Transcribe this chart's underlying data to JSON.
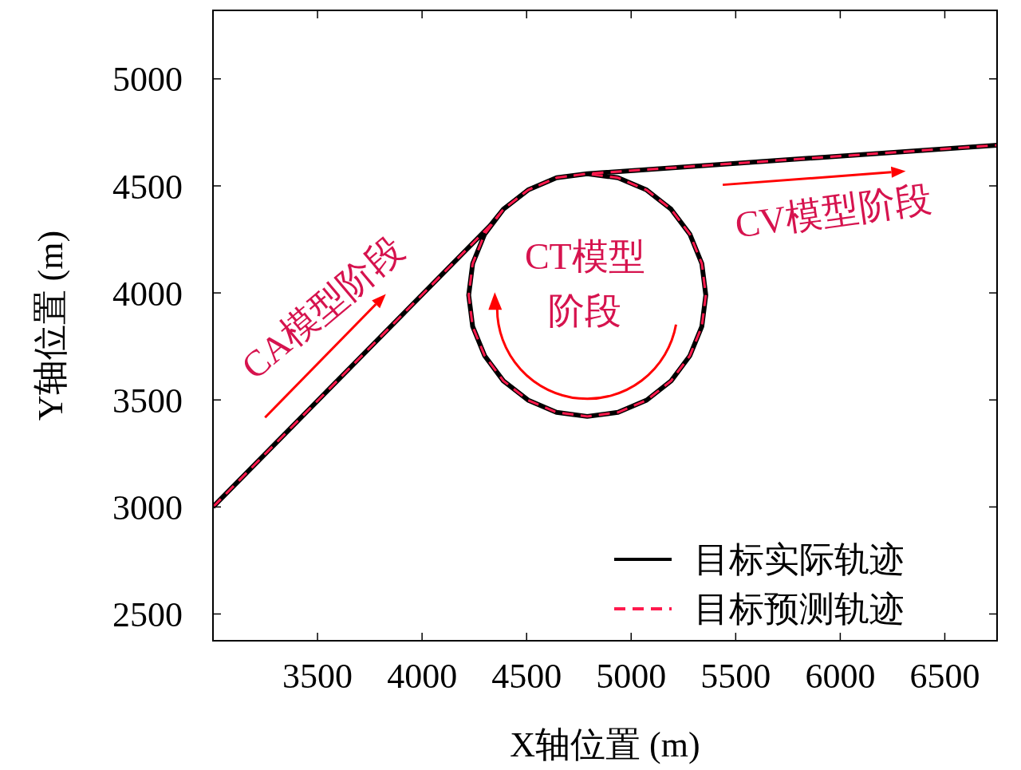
{
  "chart_data": {
    "type": "line",
    "xlabel": "X轴位置 (m)",
    "ylabel": "Y轴位置 (m)",
    "xlim": [
      3000,
      6750
    ],
    "ylim": [
      2375,
      5320
    ],
    "xticks": [
      3500,
      4000,
      4500,
      5000,
      5500,
      6000,
      6500
    ],
    "yticks": [
      2500,
      3000,
      3500,
      4000,
      4500,
      5000
    ],
    "grid": false,
    "legend": "bottom right",
    "series": [
      {
        "name": "目标实际轨迹",
        "color": "#000000",
        "line_style": "solid",
        "x": [
          3000,
          4326,
          4389,
          4507,
          4643,
          4790,
          4937,
          5074,
          5191,
          5281,
          5338,
          5357,
          5338,
          5281,
          5191,
          5074,
          4937,
          4790,
          4643,
          4507,
          4389,
          4299,
          4242,
          4223,
          4242,
          4299,
          4389,
          4507,
          4643,
          4790,
          6750
        ],
        "values": [
          3000,
          4315,
          4391,
          4481,
          4538,
          4557,
          4538,
          4481,
          4391,
          4274,
          4137,
          3990,
          3843,
          3707,
          3589,
          3499,
          3442,
          3423,
          3442,
          3499,
          3589,
          3707,
          3843,
          3990,
          4137,
          4274,
          4391,
          4481,
          4538,
          4557,
          4690
        ]
      },
      {
        "name": "目标预测轨迹",
        "color": "#ff1a4d",
        "line_style": "dashed",
        "x": [
          3000,
          4326,
          4389,
          4507,
          4643,
          4790,
          4937,
          5074,
          5191,
          5281,
          5338,
          5357,
          5338,
          5281,
          5191,
          5074,
          4937,
          4790,
          4643,
          4507,
          4389,
          4299,
          4242,
          4223,
          4242,
          4299,
          4389,
          4507,
          4643,
          4790,
          6750
        ],
        "values": [
          3000,
          4315,
          4391,
          4481,
          4538,
          4557,
          4538,
          4481,
          4391,
          4274,
          4137,
          3990,
          3843,
          3707,
          3589,
          3499,
          3442,
          3423,
          3442,
          3499,
          3589,
          3707,
          3843,
          3990,
          4137,
          4274,
          4391,
          4481,
          4538,
          4557,
          4690
        ]
      }
    ],
    "annotations": [
      "CA模型阶段",
      "CT模型阶段",
      "CV模型阶段"
    ]
  }
}
